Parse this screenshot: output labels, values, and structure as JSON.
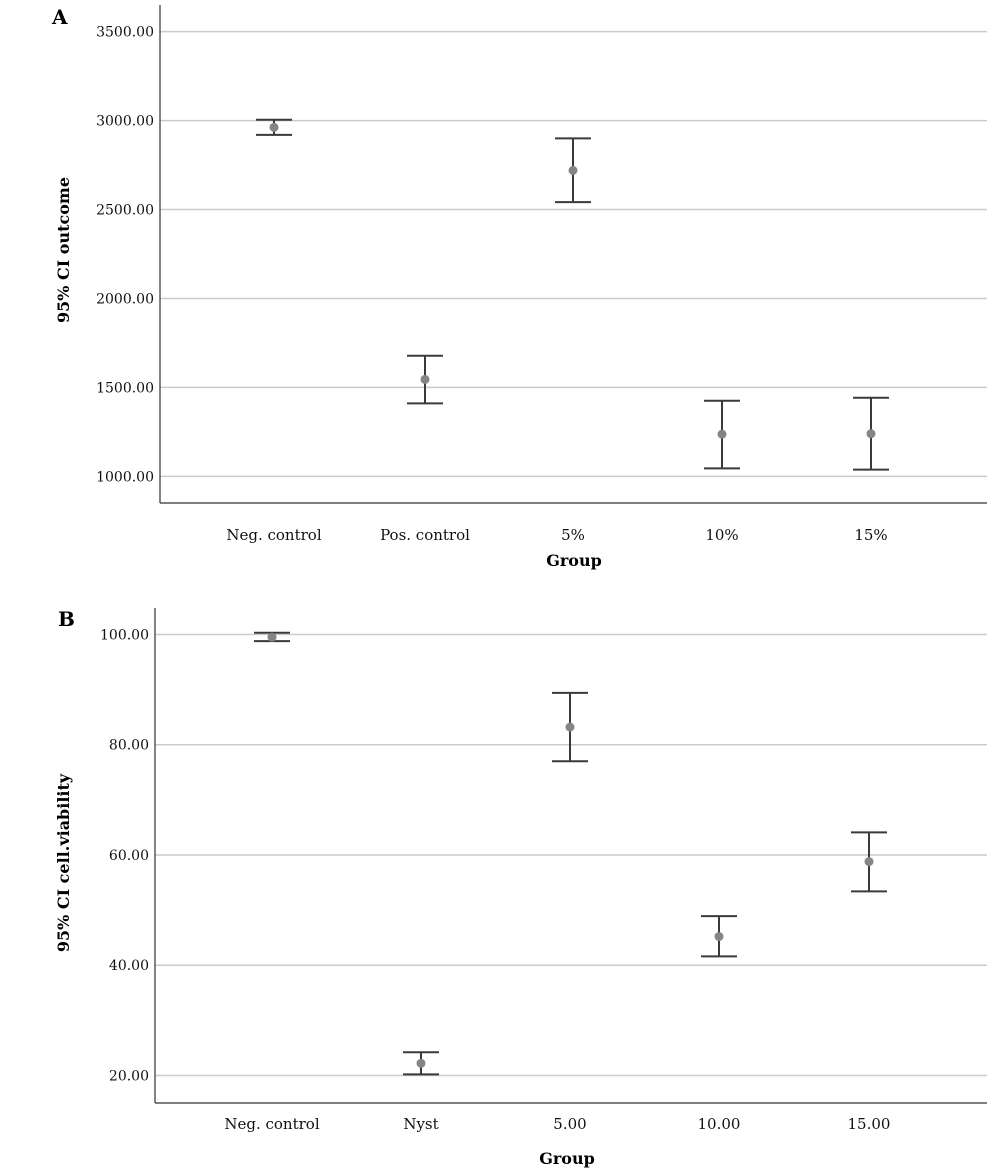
{
  "chart_data": [
    {
      "type": "errorbar",
      "panel_label": "A",
      "xlabel": "Group",
      "ylabel": "95% CI outcome",
      "categories": [
        "Neg. control",
        "Pos. control",
        "5%",
        "10%",
        "15%"
      ],
      "mean": [
        2962,
        1545,
        2720,
        1237,
        1240
      ],
      "lower": [
        2920,
        1410,
        2542,
        1045,
        1038
      ],
      "upper": [
        3005,
        1678,
        2900,
        1425,
        1442
      ],
      "yticks": [
        "1000.00",
        "1500.00",
        "2000.00",
        "2500.00",
        "3000.00",
        "3500.00"
      ],
      "ytick_values": [
        1000,
        1500,
        2000,
        2500,
        3000,
        3500
      ],
      "ylim": [
        850,
        3650
      ],
      "grid": true,
      "colors": {
        "marker": "#858585",
        "errorbar": "#3a3a3a",
        "grid": "#c8cccc"
      }
    },
    {
      "type": "errorbar",
      "panel_label": "B",
      "xlabel": "Group",
      "ylabel": "95% CI cell.viability",
      "categories": [
        "Neg. control",
        "Nyst",
        "5.00",
        "10.00",
        "15.00"
      ],
      "mean": [
        99.5,
        22.2,
        83.2,
        45.2,
        58.8
      ],
      "lower": [
        98.8,
        20.2,
        77.0,
        41.6,
        53.4
      ],
      "upper": [
        100.3,
        24.2,
        89.4,
        48.9,
        64.1
      ],
      "yticks": [
        "20.00",
        "40.00",
        "60.00",
        "80.00",
        "100.00"
      ],
      "ytick_values": [
        20,
        40,
        60,
        80,
        100
      ],
      "ylim": [
        15,
        104.8
      ],
      "grid": true,
      "colors": {
        "marker": "#858585",
        "errorbar": "#3a3a3a",
        "grid": "#c8cccc"
      }
    }
  ]
}
